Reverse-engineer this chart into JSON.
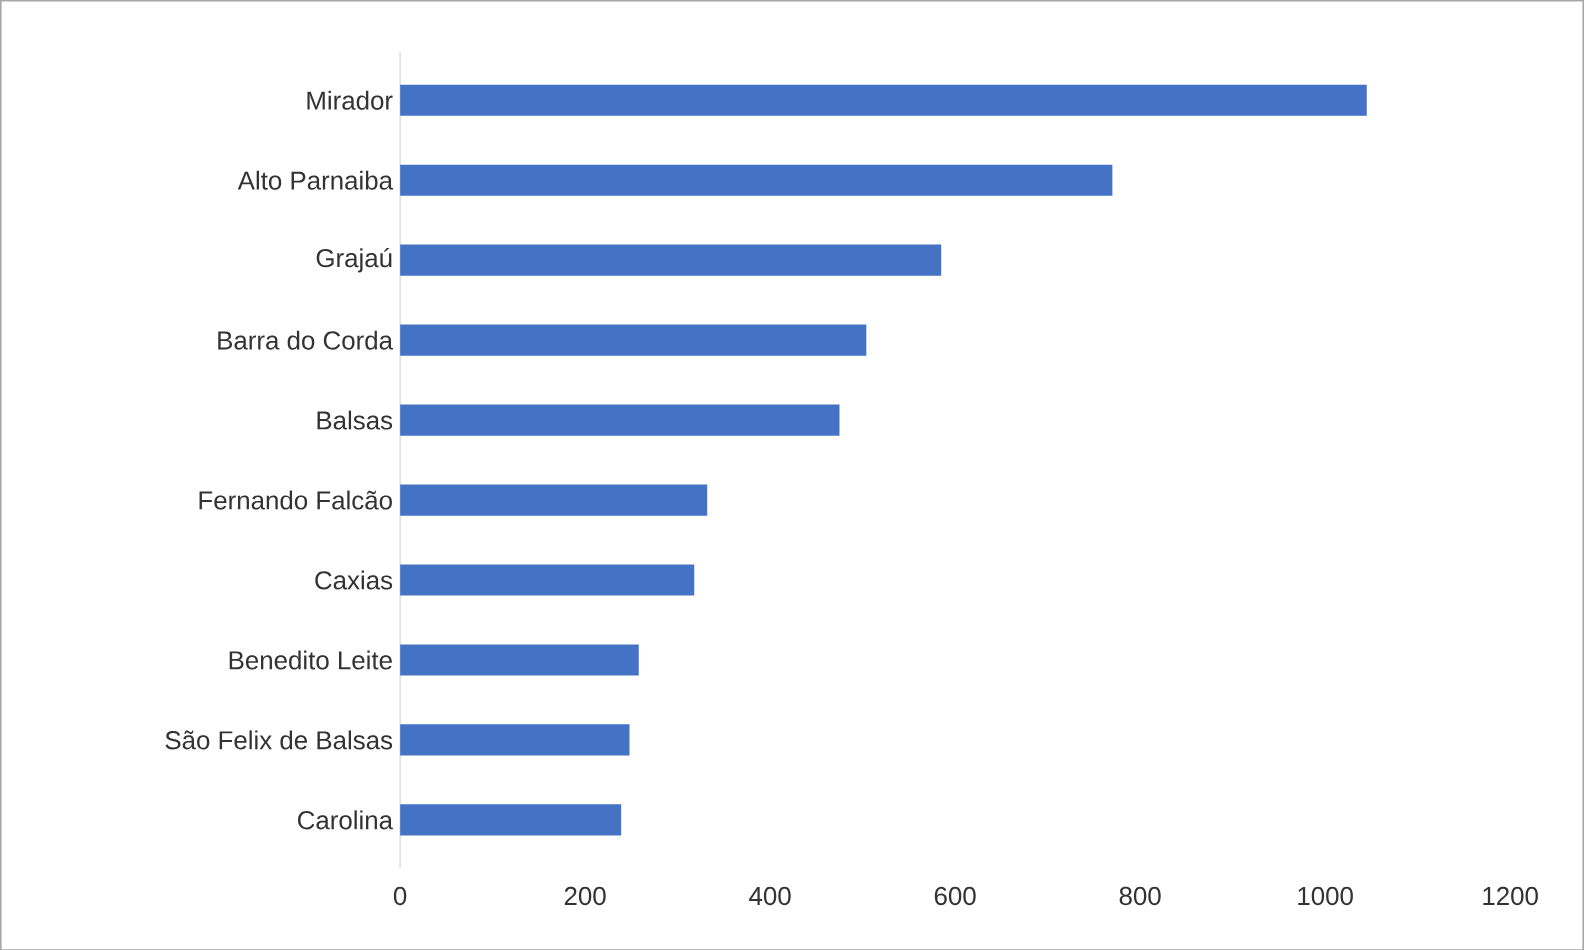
{
  "chart_data": {
    "type": "bar",
    "orientation": "horizontal",
    "categories": [
      "Mirador",
      "Alto Parnaiba",
      "Grajaú",
      "Barra do Corda",
      "Balsas",
      "Fernando Falcão",
      "Caxias",
      "Benedito Leite",
      "São Felix de Balsas",
      "Carolina"
    ],
    "values": [
      1045,
      770,
      585,
      504,
      475,
      332,
      318,
      258,
      248,
      239
    ],
    "color": "#4472c4",
    "xlim": [
      0,
      1200
    ],
    "xticks": [
      0,
      200,
      400,
      600,
      800,
      1000,
      1200
    ]
  }
}
